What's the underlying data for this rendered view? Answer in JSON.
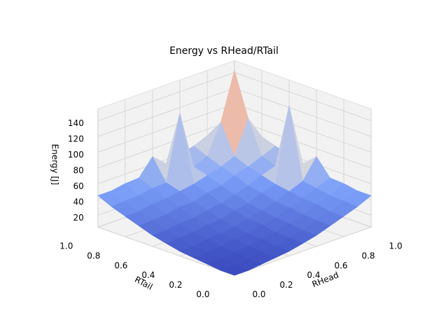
{
  "chart_data": {
    "type": "surface3d",
    "title": "Energy vs RHead/RTail",
    "xlabel": "RHead",
    "ylabel": "RTail",
    "zlabel": "Energy [J]",
    "colormap": "coolwarm",
    "x": [
      0,
      0.1,
      0.2,
      0.3,
      0.4,
      0.5,
      0.6,
      0.7,
      0.8,
      0.9,
      1
    ],
    "y": [
      0,
      0.1,
      0.2,
      0.3,
      0.4,
      0.5,
      0.6,
      0.7,
      0.8,
      0.9,
      1
    ],
    "z": [
      [
        5,
        5,
        7,
        9,
        11,
        15,
        19,
        25,
        31,
        37,
        45
      ],
      [
        5,
        6,
        7,
        10,
        11,
        16,
        19,
        26,
        31,
        38,
        45
      ],
      [
        7,
        7,
        9,
        11,
        14,
        17,
        22,
        27,
        34,
        39,
        48
      ],
      [
        9,
        10,
        11,
        14,
        15,
        20,
        23,
        30,
        35,
        42,
        49
      ],
      [
        11,
        11,
        14,
        15,
        18,
        21,
        26,
        31,
        38,
        45,
        70
      ],
      [
        15,
        16,
        17,
        20,
        21,
        26,
        29,
        36,
        41,
        135,
        55
      ],
      [
        19,
        19,
        22,
        23,
        26,
        29,
        34,
        39,
        46,
        52,
        60
      ],
      [
        25,
        26,
        27,
        30,
        31,
        36,
        39,
        46,
        51,
        58,
        65
      ],
      [
        31,
        31,
        34,
        35,
        38,
        41,
        46,
        51,
        58,
        100,
        71
      ],
      [
        37,
        38,
        39,
        42,
        43,
        125,
        51,
        58,
        95,
        155,
        77
      ],
      [
        45,
        45,
        48,
        49,
        70,
        55,
        60,
        65,
        72,
        80,
        85
      ]
    ],
    "xlim": [
      0,
      1
    ],
    "ylim": [
      0,
      1
    ],
    "zlim": [
      5,
      155
    ],
    "xticks": [
      {
        "value": 0,
        "label": "0.0"
      },
      0.2,
      0.4,
      0.6,
      0.8,
      {
        "value": 1,
        "label": "1.0"
      }
    ],
    "yticks": [
      {
        "value": 0,
        "label": "0.0"
      },
      0.2,
      0.4,
      0.6,
      0.8,
      {
        "value": 1,
        "label": "1.0"
      }
    ],
    "zticks": [
      20,
      40,
      60,
      80,
      100,
      120,
      140
    ],
    "grid": true
  }
}
